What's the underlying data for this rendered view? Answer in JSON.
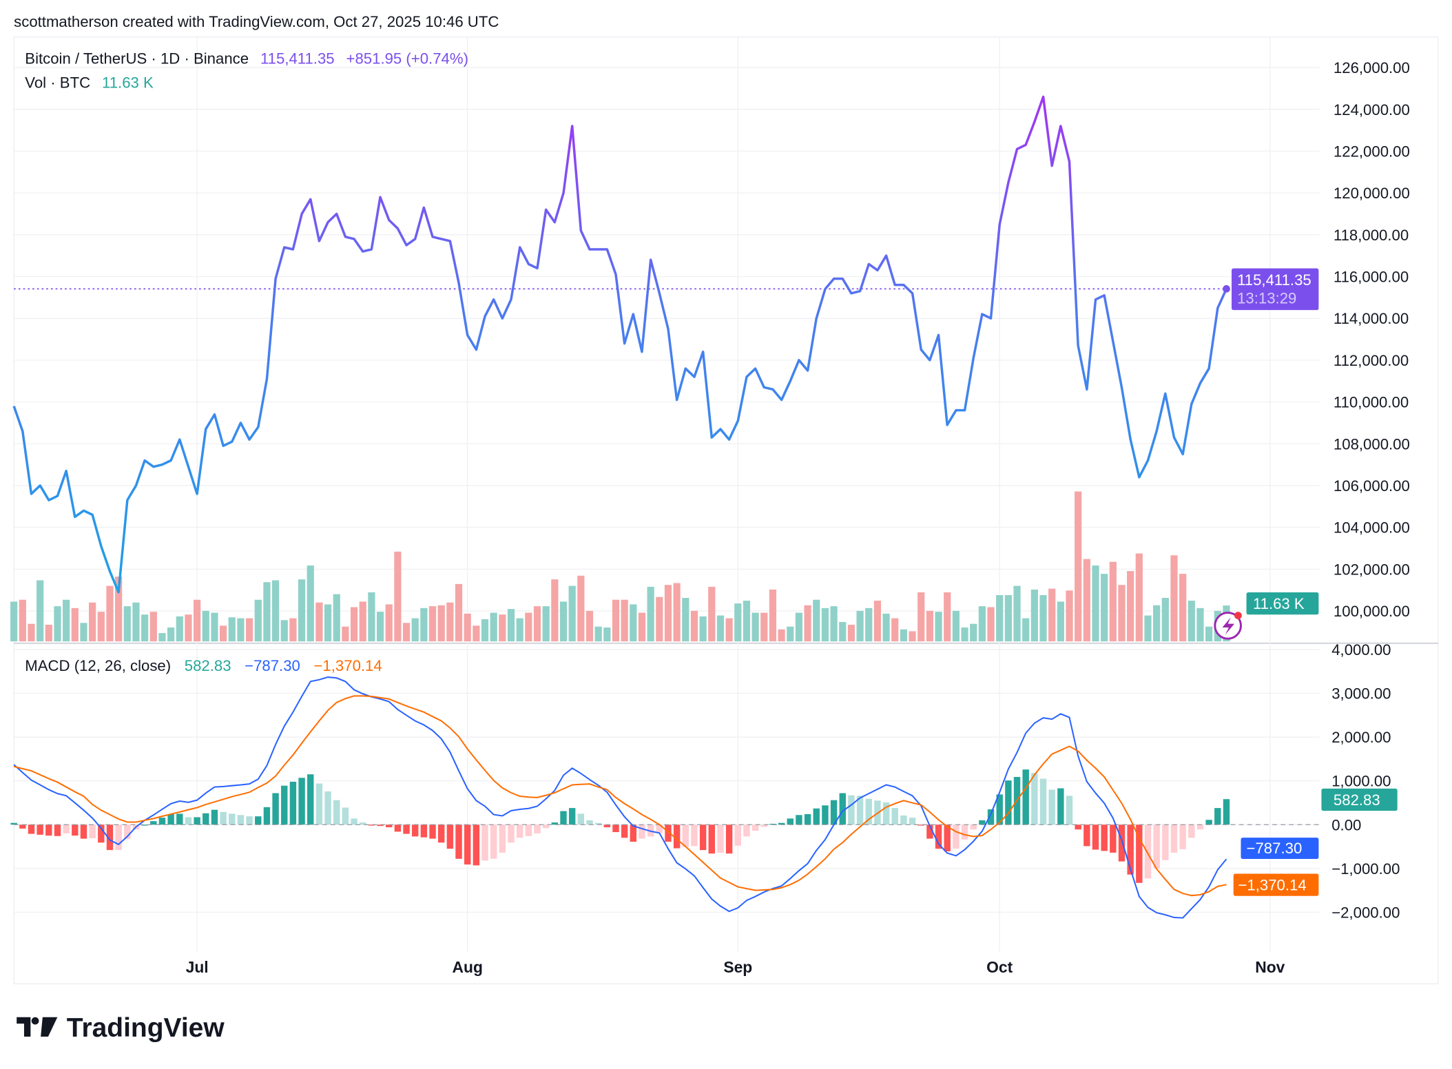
{
  "header": {
    "attribution": "scottmatherson created with TradingView.com, Oct 27, 2025 10:46 UTC"
  },
  "legend": {
    "symbol": "Bitcoin / TetherUS · 1D · Binance",
    "price": "115,411.35",
    "change": "+851.95 (+0.74%)",
    "vol_label": "Vol · BTC",
    "vol_value": "11.63 K",
    "macd_label": "MACD (12, 26, close)",
    "macd_hist": "582.83",
    "macd_line": "−787.30",
    "macd_signal": "−1,370.14"
  },
  "price_axis": [
    "126,000.00",
    "124,000.00",
    "122,000.00",
    "120,000.00",
    "118,000.00",
    "116,000.00",
    "114,000.00",
    "112,000.00",
    "110,000.00",
    "108,000.00",
    "106,000.00",
    "104,000.00",
    "102,000.00",
    "100,000.00"
  ],
  "macd_axis": [
    "4,000.00",
    "3,000.00",
    "2,000.00",
    "1,000.00",
    "0.00",
    "−1,000.00",
    "−2,000.00"
  ],
  "time_axis": [
    "Jul",
    "Aug",
    "Sep",
    "Oct",
    "Nov"
  ],
  "badges": {
    "price": "115,411.35",
    "countdown": "13:13:29",
    "volume": "11.63 K",
    "hist": "582.83",
    "macd": "−787.30",
    "signal": "−1,370.14"
  },
  "logo": {
    "text": "TradingView"
  },
  "colors": {
    "price_low": "#1ea0e6",
    "price_mid": "#4c7bf0",
    "price_high": "#a234f2",
    "last_price": "#7b4fec",
    "up": "#26a69a",
    "up_light": "#b2dfdb",
    "down": "#ff5252",
    "down_light": "#ffcdd2",
    "vol_up": "#8fd1c8",
    "vol_down": "#f5a5a5",
    "macd_line": "#2962ff",
    "signal_line": "#ff6d00"
  },
  "chart_data": {
    "type": "line",
    "title": "Bitcoin / TetherUS · 1D · Binance",
    "interval": "1D",
    "start_date": "2025-06-10",
    "end_date": "2025-10-27",
    "ylim": [
      99000,
      127000
    ],
    "grid": true,
    "close": [
      109800,
      108600,
      105600,
      106000,
      105300,
      105500,
      106700,
      104500,
      104800,
      104600,
      103100,
      101900,
      100900,
      105300,
      106000,
      107200,
      106900,
      107000,
      107200,
      108200,
      106900,
      105600,
      108700,
      109400,
      107900,
      108100,
      109000,
      108200,
      108800,
      111100,
      115900,
      117400,
      117300,
      119000,
      119700,
      117700,
      118600,
      119000,
      117900,
      117800,
      117200,
      117300,
      119800,
      118700,
      118300,
      117500,
      117800,
      119300,
      117900,
      117800,
      117700,
      115700,
      113200,
      112500,
      114100,
      114900,
      114000,
      114900,
      117400,
      116600,
      116400,
      119200,
      118600,
      120000,
      123200,
      118200,
      117300,
      117300,
      117300,
      116100,
      112800,
      114200,
      112400,
      116800,
      115200,
      113500,
      110100,
      111600,
      111200,
      112400,
      108300,
      108700,
      108200,
      109100,
      111200,
      111600,
      110700,
      110600,
      110100,
      111000,
      112000,
      111500,
      114000,
      115400,
      115900,
      115900,
      115200,
      115300,
      116600,
      116300,
      117000,
      115600,
      115600,
      115200,
      112500,
      112000,
      113200,
      108900,
      109600,
      109600,
      112100,
      114200,
      114000,
      118500,
      120500,
      122100,
      122300,
      123400,
      124600,
      121300,
      123200,
      121500,
      112700,
      110600,
      114900,
      115100,
      112900,
      110700,
      108200,
      106400,
      107200,
      108600,
      110400,
      108300,
      107500,
      109900,
      110900,
      111600,
      114500,
      115411.35
    ],
    "volume_k": [
      12.9,
      13.5,
      5.7,
      19.8,
      5.4,
      11.4,
      13.5,
      10.8,
      6.0,
      12.6,
      9.6,
      18.0,
      21.0,
      11.4,
      12.6,
      8.7,
      9.6,
      2.7,
      4.5,
      8.1,
      8.7,
      13.5,
      9.9,
      9.3,
      5.1,
      7.8,
      7.5,
      7.5,
      13.5,
      19.2,
      19.8,
      6.9,
      7.5,
      20.1,
      24.6,
      12.6,
      12.0,
      15.3,
      4.8,
      11.1,
      12.9,
      15.9,
      9.6,
      12.0,
      29.1,
      6.0,
      7.5,
      10.8,
      11.4,
      11.7,
      12.6,
      18.6,
      9.0,
      5.1,
      7.2,
      9.3,
      8.7,
      10.5,
      7.5,
      9.3,
      11.4,
      11.4,
      20.1,
      12.9,
      18.0,
      21.3,
      9.9,
      4.8,
      4.5,
      13.5,
      13.5,
      12.0,
      9.3,
      17.7,
      14.4,
      18.3,
      18.9,
      14.1,
      9.9,
      8.1,
      17.7,
      8.4,
      7.5,
      12.3,
      13.2,
      9.3,
      9.3,
      16.8,
      3.9,
      4.8,
      9.3,
      11.7,
      13.5,
      10.8,
      11.4,
      6.3,
      5.4,
      9.9,
      10.8,
      13.2,
      9.0,
      7.5,
      3.9,
      3.3,
      15.9,
      9.9,
      9.6,
      15.9,
      9.9,
      4.5,
      5.7,
      11.4,
      11.1,
      15.0,
      15.0,
      18.0,
      7.5,
      16.8,
      15.0,
      17.1,
      12.9,
      16.5,
      48.6,
      26.7,
      24.6,
      21.9,
      25.8,
      18.3,
      22.8,
      28.5,
      8.4,
      11.7,
      14.1,
      27.9,
      21.9,
      13.2,
      10.8,
      4.8,
      9.9,
      11.63
    ],
    "macd": [
      1370,
      1190,
      1020,
      910,
      800,
      710,
      660,
      500,
      330,
      150,
      -80,
      -350,
      -450,
      -270,
      -50,
      100,
      220,
      350,
      480,
      540,
      510,
      560,
      720,
      860,
      870,
      890,
      910,
      930,
      1040,
      1350,
      1830,
      2250,
      2570,
      2930,
      3270,
      3310,
      3370,
      3350,
      3270,
      3080,
      2990,
      2920,
      2870,
      2810,
      2630,
      2500,
      2370,
      2280,
      2150,
      1960,
      1660,
      1230,
      820,
      550,
      420,
      230,
      200,
      320,
      350,
      370,
      420,
      590,
      780,
      1130,
      1290,
      1170,
      1030,
      900,
      740,
      450,
      180,
      -30,
      -90,
      -150,
      -190,
      -550,
      -870,
      -1010,
      -1170,
      -1440,
      -1700,
      -1860,
      -1980,
      -1900,
      -1730,
      -1640,
      -1540,
      -1460,
      -1400,
      -1230,
      -1050,
      -890,
      -590,
      -340,
      0,
      310,
      450,
      610,
      710,
      810,
      910,
      860,
      760,
      660,
      430,
      -30,
      -440,
      -650,
      -710,
      -570,
      -380,
      -150,
      240,
      740,
      1270,
      1650,
      2090,
      2320,
      2440,
      2410,
      2530,
      2450,
      1570,
      980,
      720,
      490,
      150,
      -350,
      -1020,
      -1640,
      -1890,
      -2010,
      -2060,
      -2120,
      -2130,
      -1920,
      -1710,
      -1420,
      -1030,
      -787.3
    ],
    "signal": [
      1330,
      1280,
      1230,
      1140,
      1050,
      970,
      860,
      750,
      650,
      460,
      330,
      230,
      130,
      60,
      60,
      100,
      140,
      190,
      240,
      290,
      340,
      390,
      460,
      520,
      580,
      640,
      690,
      740,
      850,
      950,
      1110,
      1360,
      1590,
      1860,
      2120,
      2370,
      2610,
      2790,
      2880,
      2940,
      2940,
      2930,
      2900,
      2870,
      2790,
      2710,
      2640,
      2570,
      2470,
      2370,
      2210,
      2010,
      1730,
      1480,
      1240,
      1010,
      840,
      730,
      650,
      630,
      620,
      670,
      730,
      820,
      910,
      920,
      930,
      860,
      800,
      620,
      480,
      360,
      230,
      120,
      0,
      -160,
      -330,
      -500,
      -680,
      -860,
      -1040,
      -1220,
      -1320,
      -1420,
      -1460,
      -1500,
      -1490,
      -1480,
      -1440,
      -1370,
      -1270,
      -1130,
      -960,
      -780,
      -560,
      -410,
      -220,
      -50,
      120,
      260,
      400,
      480,
      550,
      500,
      450,
      290,
      110,
      -40,
      -160,
      -230,
      -270,
      -250,
      -110,
      50,
      260,
      560,
      830,
      1140,
      1390,
      1610,
      1700,
      1790,
      1680,
      1470,
      1290,
      1090,
      790,
      490,
      120,
      -310,
      -660,
      -1010,
      -1250,
      -1480,
      -1570,
      -1620,
      -1600,
      -1530,
      -1410,
      -1370.14
    ],
    "macd_ylim": [
      -2600,
      4200
    ]
  }
}
